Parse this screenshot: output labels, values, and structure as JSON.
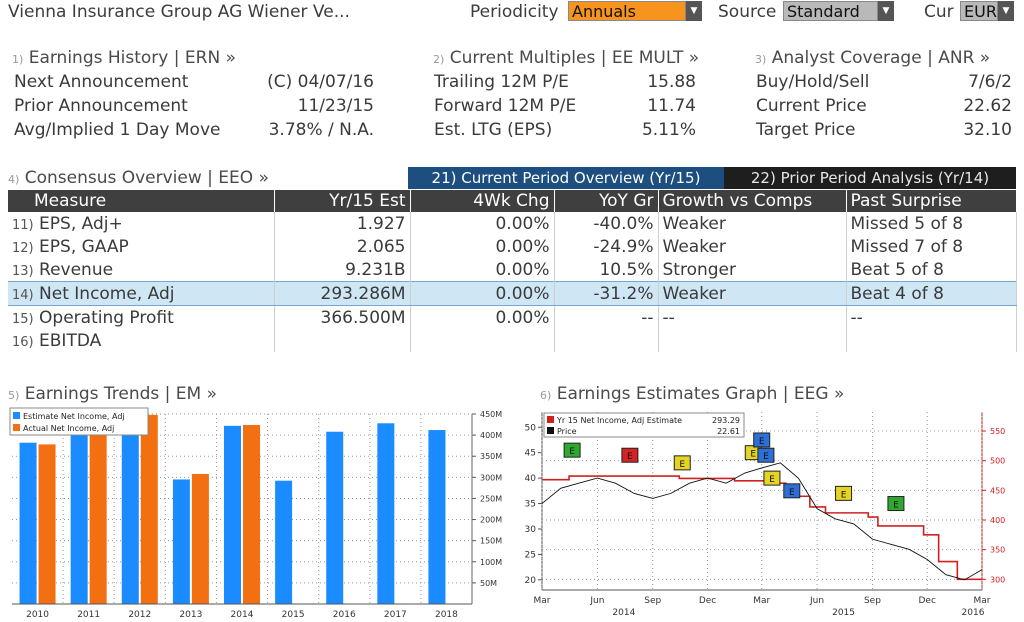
{
  "header": {
    "company": "Vienna Insurance Group AG Wiener Ve...",
    "periodicity_label": "Periodicity",
    "periodicity_value": "Annuals",
    "source_label": "Source",
    "source_value": "Standard",
    "currency_label": "Cur",
    "currency_value": "EUR"
  },
  "earnings_history": {
    "num": "1)",
    "title": "Earnings History | ERN »",
    "rows": [
      {
        "label": "Next Announcement",
        "value": "(C)  04/07/16"
      },
      {
        "label": "Prior Announcement",
        "value": "11/23/15"
      },
      {
        "label": "Avg/Implied 1 Day Move",
        "value": "3.78% / N.A."
      }
    ]
  },
  "current_multiples": {
    "num": "2)",
    "title": "Current Multiples | EE MULT »",
    "rows": [
      {
        "label": "Trailing 12M P/E",
        "value": "15.88"
      },
      {
        "label": "Forward 12M P/E",
        "value": "11.74"
      },
      {
        "label": "Est. LTG (EPS)",
        "value": "5.11%"
      }
    ]
  },
  "analyst_coverage": {
    "num": "3)",
    "title": "Analyst Coverage | ANR »",
    "rows": [
      {
        "label": "Buy/Hold/Sell",
        "value": "7/6/2"
      },
      {
        "label": "Current Price",
        "value": "22.62"
      },
      {
        "label": "Target Price",
        "value": "32.10"
      }
    ]
  },
  "consensus": {
    "num": "4)",
    "title": "Consensus Overview | EEO »",
    "tab_current": "21) Current Period Overview (Yr/15)",
    "tab_prior": "22) Prior Period Analysis (Yr/14)",
    "headers": [
      "Measure",
      "Yr/15 Est",
      "4Wk Chg",
      "YoY Gr",
      "Growth vs Comps",
      "Past Surprise"
    ],
    "rows": [
      {
        "n": "11)",
        "measure": "EPS, Adj+",
        "est": "1.927",
        "chg": "0.00%",
        "yoy": "-40.0%",
        "growth": "Weaker",
        "surprise": "Missed 5 of 8"
      },
      {
        "n": "12)",
        "measure": "EPS, GAAP",
        "est": "2.065",
        "chg": "0.00%",
        "yoy": "-24.9%",
        "growth": "Weaker",
        "surprise": "Missed 7 of 8"
      },
      {
        "n": "13)",
        "measure": "Revenue",
        "est": "9.231B",
        "chg": "0.00%",
        "yoy": "10.5%",
        "growth": "Stronger",
        "surprise": "Beat 5 of 8"
      },
      {
        "n": "14)",
        "measure": "Net Income, Adj",
        "est": "293.286M",
        "chg": "0.00%",
        "yoy": "-31.2%",
        "growth": "Weaker",
        "surprise": "Beat 4 of 8"
      },
      {
        "n": "15)",
        "measure": "Operating Profit",
        "est": "366.500M",
        "chg": "0.00%",
        "yoy": "--",
        "growth": "--",
        "surprise": "--"
      },
      {
        "n": "16)",
        "measure": "EBITDA",
        "est": "",
        "chg": "",
        "yoy": "",
        "growth": "",
        "surprise": ""
      }
    ]
  },
  "earnings_trends": {
    "num": "5)",
    "title": "Earnings Trends | EM »"
  },
  "estimates_graph": {
    "num": "6)",
    "title": "Earnings Estimates Graph | EEG »"
  },
  "colors": {
    "estimate_blue": "#1a8cff",
    "actual_orange": "#f26f12",
    "estimate_line_red": "#d22020",
    "price_black": "#111111"
  },
  "chart_data": [
    {
      "type": "bar",
      "title": "",
      "categories": [
        "2010",
        "2011",
        "2012",
        "2013",
        "2014",
        "2015",
        "2016",
        "2017",
        "2018"
      ],
      "series": [
        {
          "name": "Estimate Net Income, Adj",
          "values": [
            382,
            418,
            418,
            295,
            422,
            292,
            408,
            428,
            412
          ]
        },
        {
          "name": "Actual Net Income, Adj",
          "values": [
            378,
            422,
            448,
            308,
            424,
            null,
            null,
            null,
            null
          ]
        }
      ],
      "ylim": [
        0,
        450
      ],
      "yticks": [
        "50M",
        "100M",
        "150M",
        "200M",
        "250M",
        "300M",
        "350M",
        "400M",
        "450M"
      ],
      "grid": true,
      "legend": "top-left"
    },
    {
      "type": "line",
      "title": "",
      "x_ticks": [
        "Mar",
        "Jun",
        "Sep",
        "Dec",
        "Mar",
        "Jun",
        "Sep",
        "Dec",
        "Mar"
      ],
      "x_years": [
        "2014",
        "2015",
        "2016"
      ],
      "legend": "top-left",
      "legend_values": {
        "estimate": "293.29",
        "price": "22.61"
      },
      "left_axis": {
        "ticks": [
          20,
          25,
          30,
          35,
          40,
          45,
          50
        ],
        "range": [
          18,
          53
        ]
      },
      "right_axis": {
        "ticks": [
          "300",
          "350",
          "400",
          "450",
          "500",
          "550"
        ],
        "range": [
          282,
          582
        ]
      },
      "series": [
        {
          "name": "Yr 15 Net Income, Adj Estimate",
          "axis": "right",
          "x": [
            "2014-03-01",
            "2014-04-15",
            "2014-06-01",
            "2014-07-15",
            "2014-09-01",
            "2014-10-15",
            "2014-12-01",
            "2015-01-15",
            "2015-02-20",
            "2015-03-15",
            "2015-04-10",
            "2015-05-01",
            "2015-05-20",
            "2015-06-15",
            "2015-07-20",
            "2015-08-25",
            "2015-09-10",
            "2015-10-15",
            "2015-11-25",
            "2015-12-20",
            "2016-01-20",
            "2016-03-01"
          ],
          "y": [
            468,
            474,
            474,
            474,
            474,
            470,
            470,
            466,
            466,
            462,
            455,
            440,
            422,
            412,
            412,
            405,
            390,
            390,
            375,
            330,
            300,
            300
          ]
        },
        {
          "name": "Price",
          "axis": "left",
          "x": [
            "2014-03-01",
            "2014-04-01",
            "2014-05-01",
            "2014-06-01",
            "2014-07-01",
            "2014-08-01",
            "2014-09-01",
            "2014-10-01",
            "2014-11-01",
            "2014-12-01",
            "2015-01-01",
            "2015-02-01",
            "2015-03-01",
            "2015-04-01",
            "2015-05-01",
            "2015-06-01",
            "2015-07-01",
            "2015-08-01",
            "2015-09-01",
            "2015-10-01",
            "2015-11-01",
            "2015-12-01",
            "2016-01-01",
            "2016-02-01",
            "2016-03-01"
          ],
          "y": [
            35,
            38,
            39,
            40,
            39,
            37,
            36,
            37,
            39,
            40,
            39,
            41,
            42,
            43,
            40,
            34,
            32,
            31,
            28,
            27,
            26,
            24,
            21,
            20,
            22
          ]
        }
      ],
      "events": [
        {
          "date": "2014-04-20",
          "v": 45.5,
          "color": "#2ea82e"
        },
        {
          "date": "2014-07-25",
          "v": 44.5,
          "color": "#d42323"
        },
        {
          "date": "2014-10-20",
          "v": 43.0,
          "color": "#e6d425"
        },
        {
          "date": "2015-02-15",
          "v": 45.0,
          "color": "#e6d425"
        },
        {
          "date": "2015-03-01",
          "v": 47.5,
          "color": "#2d6fd6"
        },
        {
          "date": "2015-03-08",
          "v": 44.5,
          "color": "#2d6fd6"
        },
        {
          "date": "2015-03-18",
          "v": 40.0,
          "color": "#e6d425"
        },
        {
          "date": "2015-04-20",
          "v": 37.5,
          "color": "#2d6fd6"
        },
        {
          "date": "2015-07-15",
          "v": 37.0,
          "color": "#e6d425"
        },
        {
          "date": "2015-10-10",
          "v": 35.0,
          "color": "#2ea82e"
        }
      ]
    }
  ]
}
